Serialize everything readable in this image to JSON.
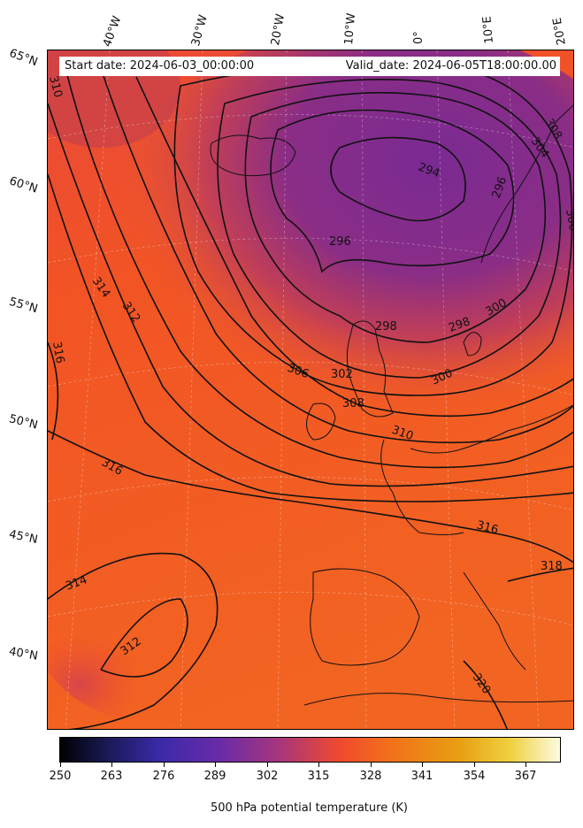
{
  "header": {
    "start_date": "Start date: 2024-06-03_00:00:00",
    "valid_date": "Valid_date: 2024-06-05T18:00:00.00"
  },
  "longitude_labels": [
    "40°W",
    "30°W",
    "20°W",
    "10°W",
    "0°",
    "10°E",
    "20°E"
  ],
  "latitude_labels": [
    "65°N",
    "60°N",
    "55°N",
    "50°N",
    "45°N",
    "40°N"
  ],
  "contour_labels": [
    "310",
    "308",
    "304",
    "306",
    "294",
    "296",
    "296",
    "298",
    "298",
    "300",
    "300",
    "302",
    "306",
    "308",
    "310",
    "314",
    "312",
    "316",
    "316",
    "316",
    "318",
    "314",
    "312",
    "320"
  ],
  "colorbar": {
    "ticks": [
      "250",
      "263",
      "276",
      "289",
      "302",
      "315",
      "328",
      "341",
      "354",
      "367"
    ],
    "label": "500 hPa potential temperature (K)",
    "range": [
      250,
      376
    ],
    "colormap": "CMRmap-like (black-blue-purple-red-orange-yellow-white)"
  },
  "colors": {
    "warm": "#f25a2a",
    "cool_core": "#7e2b90",
    "mid": "#b33d6e"
  }
}
